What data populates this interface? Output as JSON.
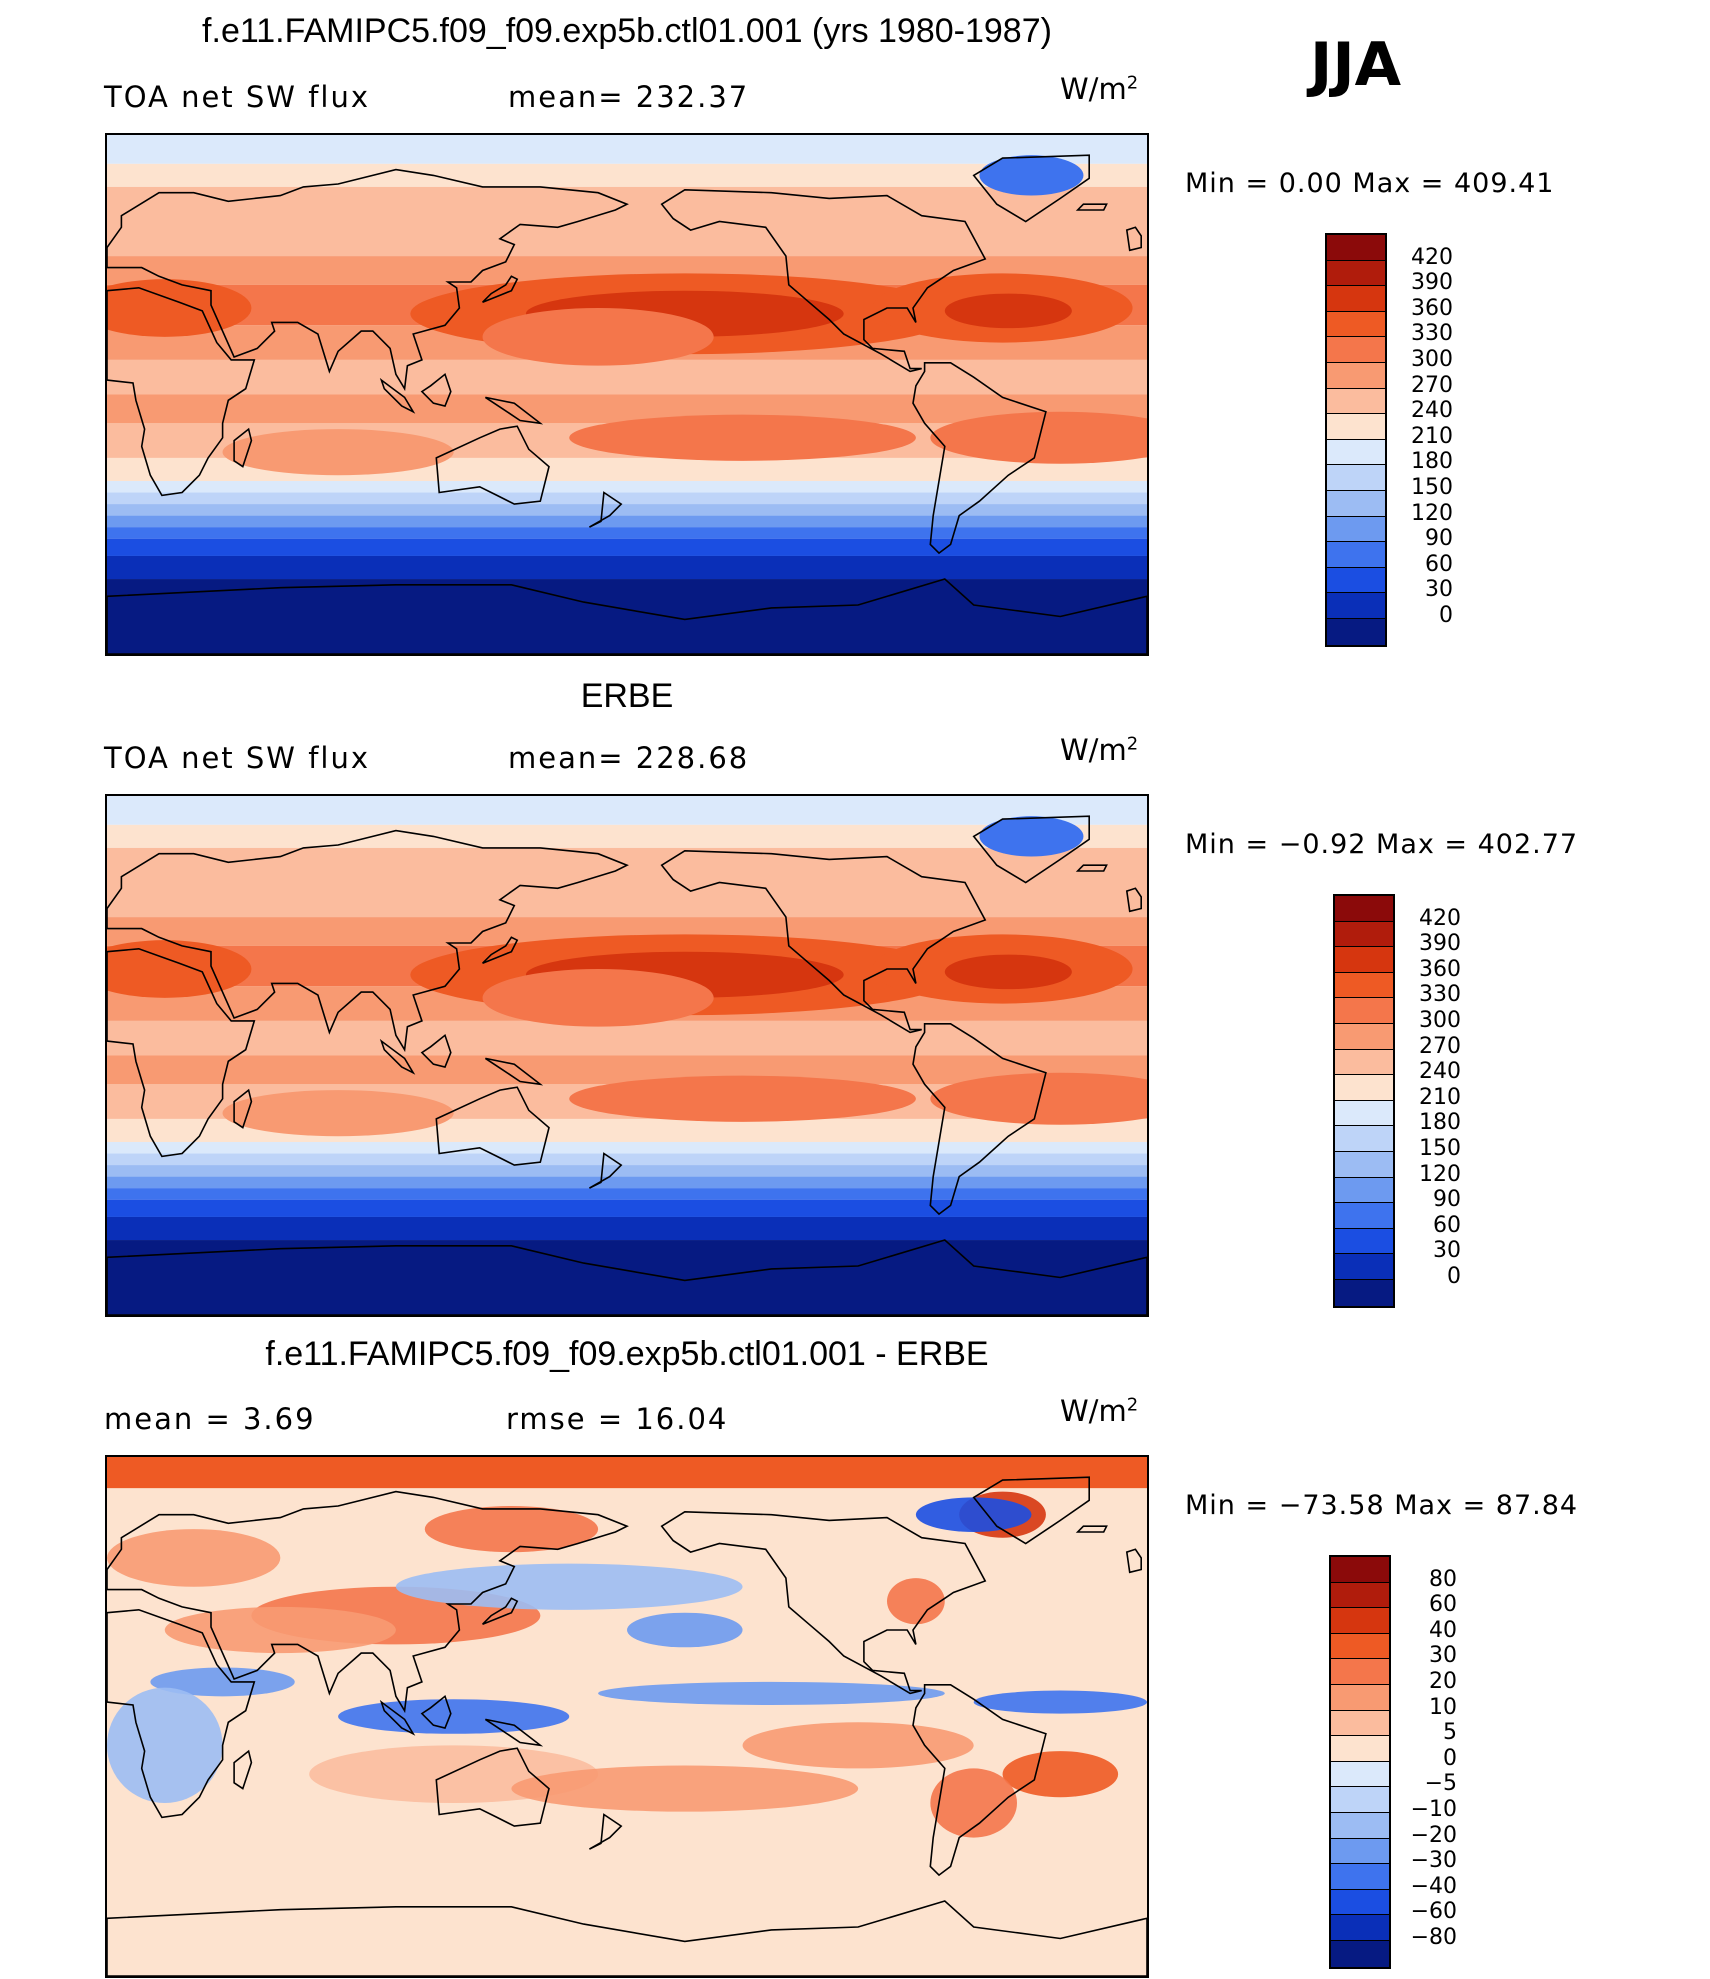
{
  "season": "JJA",
  "panels": [
    {
      "title": "f.e11.FAMIPC5.f09_f09.exp5b.ctl01.001 (yrs 1980-1987)",
      "left_label": "TOA net SW flux",
      "center_label": "mean= 232.37",
      "units": "W/m",
      "units_sup": "2",
      "minmax": "Min =    0.00  Max  =  409.41",
      "colorbar_labels": [
        "420",
        "390",
        "360",
        "330",
        "300",
        "270",
        "240",
        "210",
        "180",
        "150",
        "120",
        "90",
        "60",
        "30",
        "0"
      ],
      "colorbar_colors": [
        "#8b0a0a",
        "#b01c0c",
        "#d6360f",
        "#ee5a24",
        "#f4764b",
        "#f89a72",
        "#fbbc9e",
        "#fde3cf",
        "#dbe9fb",
        "#bed4f8",
        "#9cbcf3",
        "#6d9af0",
        "#3e73ee",
        "#1b4ee2",
        "#0a2fb8",
        "#061a82"
      ],
      "field": "abs"
    },
    {
      "title": "ERBE",
      "left_label": "TOA net SW flux",
      "center_label": "mean= 228.68",
      "units": "W/m",
      "units_sup": "2",
      "minmax": "Min =  −0.92  Max  =  402.77",
      "colorbar_labels": [
        "420",
        "390",
        "360",
        "330",
        "300",
        "270",
        "240",
        "210",
        "180",
        "150",
        "120",
        "90",
        "60",
        "30",
        "0"
      ],
      "colorbar_colors": [
        "#8b0a0a",
        "#b01c0c",
        "#d6360f",
        "#ee5a24",
        "#f4764b",
        "#f89a72",
        "#fbbc9e",
        "#fde3cf",
        "#dbe9fb",
        "#bed4f8",
        "#9cbcf3",
        "#6d9af0",
        "#3e73ee",
        "#1b4ee2",
        "#0a2fb8",
        "#061a82"
      ],
      "field": "abs"
    },
    {
      "title": "f.e11.FAMIPC5.f09_f09.exp5b.ctl01.001 - ERBE",
      "left_label": "mean =    3.69",
      "center_label": "rmse =   16.04",
      "units": "W/m",
      "units_sup": "2",
      "minmax": "Min = −73.58  Max =   87.84",
      "colorbar_labels": [
        "80",
        "60",
        "40",
        "30",
        "20",
        "10",
        "5",
        "0",
        "−5",
        "−10",
        "−20",
        "−30",
        "−40",
        "−60",
        "−80"
      ],
      "colorbar_colors": [
        "#8b0a0a",
        "#b01c0c",
        "#d6360f",
        "#ee5a24",
        "#f4764b",
        "#f89a72",
        "#fbbc9e",
        "#fde3cf",
        "#dbe9fb",
        "#bed4f8",
        "#9cbcf3",
        "#6d9af0",
        "#3e73ee",
        "#1b4ee2",
        "#0a2fb8",
        "#061a82"
      ],
      "field": "diff"
    }
  ]
}
